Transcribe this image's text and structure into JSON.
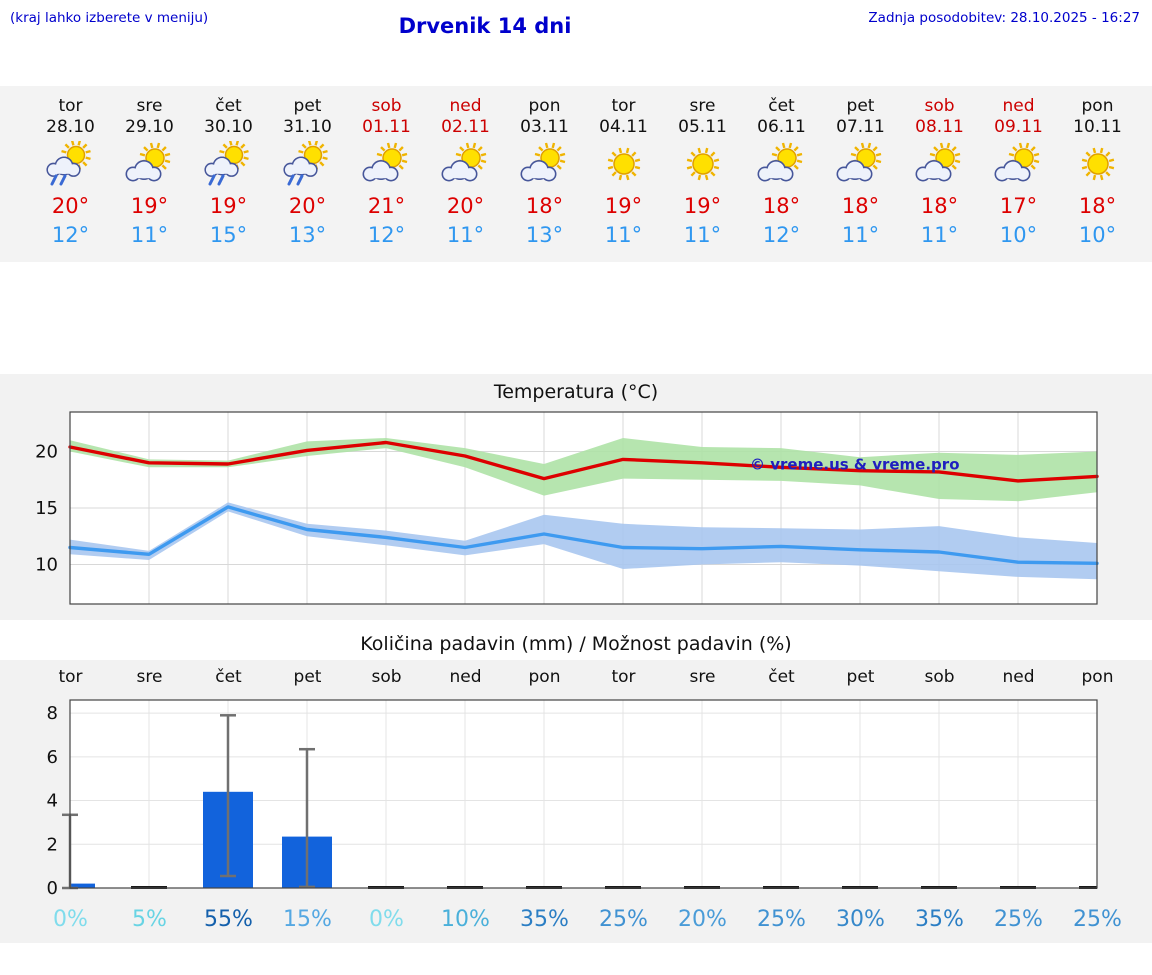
{
  "header": {
    "left_note": "(kraj lahko izberete v meniju)",
    "title": "Drvenik 14 dni",
    "updated": "Zadnja posodobitev: 28.10.2025 - 16:27"
  },
  "colors": {
    "header_blue": "#0000cc",
    "weekend_red": "#cc0000",
    "high_red": "#dd0000",
    "low_blue": "#2f97f0",
    "strip_bg": "#f3f3f3",
    "section_bg": "#f2f2f2",
    "grid_gray": "#d8d8d8",
    "plot_border": "#444444",
    "whisker_gray": "#707070"
  },
  "days": [
    {
      "name": "tor",
      "date": "28.10",
      "weekend": false,
      "icon": "sun-cloud-rain",
      "high": "20°",
      "low": "12°"
    },
    {
      "name": "sre",
      "date": "29.10",
      "weekend": false,
      "icon": "sun-cloud",
      "high": "19°",
      "low": "11°"
    },
    {
      "name": "čet",
      "date": "30.10",
      "weekend": false,
      "icon": "sun-cloud-rain",
      "high": "19°",
      "low": "15°"
    },
    {
      "name": "pet",
      "date": "31.10",
      "weekend": false,
      "icon": "sun-cloud-rain",
      "high": "20°",
      "low": "13°"
    },
    {
      "name": "sob",
      "date": "01.11",
      "weekend": true,
      "icon": "sun-cloud",
      "high": "21°",
      "low": "12°"
    },
    {
      "name": "ned",
      "date": "02.11",
      "weekend": true,
      "icon": "sun-cloud",
      "high": "20°",
      "low": "11°"
    },
    {
      "name": "pon",
      "date": "03.11",
      "weekend": false,
      "icon": "sun-cloud",
      "high": "18°",
      "low": "13°"
    },
    {
      "name": "tor",
      "date": "04.11",
      "weekend": false,
      "icon": "sun",
      "high": "19°",
      "low": "11°"
    },
    {
      "name": "sre",
      "date": "05.11",
      "weekend": false,
      "icon": "sun",
      "high": "19°",
      "low": "11°"
    },
    {
      "name": "čet",
      "date": "06.11",
      "weekend": false,
      "icon": "sun-cloud",
      "high": "18°",
      "low": "12°"
    },
    {
      "name": "pet",
      "date": "07.11",
      "weekend": false,
      "icon": "sun-cloud",
      "high": "18°",
      "low": "11°"
    },
    {
      "name": "sob",
      "date": "08.11",
      "weekend": true,
      "icon": "sun-cloud",
      "high": "18°",
      "low": "11°"
    },
    {
      "name": "ned",
      "date": "09.11",
      "weekend": true,
      "icon": "sun-cloud",
      "high": "17°",
      "low": "10°"
    },
    {
      "name": "pon",
      "date": "10.11",
      "weekend": false,
      "icon": "sun",
      "high": "18°",
      "low": "10°"
    }
  ],
  "chart_data": [
    {
      "type": "line",
      "title": "Temperatura (°C)",
      "categories": [
        "tor",
        "sre",
        "čet",
        "pet",
        "sob",
        "ned",
        "pon",
        "tor",
        "sre",
        "čet",
        "pet",
        "sob",
        "ned",
        "pon"
      ],
      "ylim": [
        6.5,
        23.5
      ],
      "yticks": [
        10,
        15,
        20
      ],
      "grid": true,
      "watermark": "© vreme.us & vreme.pro",
      "series": [
        {
          "name": "max-temp",
          "color": "#dd0000",
          "values": [
            20.4,
            19.0,
            18.9,
            20.1,
            20.8,
            19.6,
            17.6,
            19.3,
            19.0,
            18.6,
            18.3,
            18.2,
            17.4,
            17.8
          ]
        },
        {
          "name": "min-temp",
          "color": "#3e9af0",
          "values": [
            11.5,
            10.9,
            15.1,
            13.1,
            12.4,
            11.5,
            12.7,
            11.5,
            11.4,
            11.6,
            11.3,
            11.1,
            10.2,
            10.1
          ]
        }
      ],
      "bands": [
        {
          "name": "max-range",
          "color": "#aee2a6",
          "hi": [
            21.0,
            19.3,
            19.2,
            20.9,
            21.2,
            20.3,
            18.9,
            21.2,
            20.4,
            20.3,
            19.5,
            19.9,
            19.7,
            20.0
          ],
          "lo": [
            20.0,
            18.6,
            18.6,
            19.6,
            20.3,
            18.6,
            16.1,
            17.6,
            17.5,
            17.4,
            17.0,
            15.8,
            15.6,
            16.4
          ]
        },
        {
          "name": "min-range",
          "color": "#a9c7ef",
          "hi": [
            12.2,
            11.2,
            15.5,
            13.6,
            13.0,
            12.1,
            14.4,
            13.6,
            13.3,
            13.2,
            13.1,
            13.4,
            12.4,
            11.9
          ],
          "lo": [
            10.9,
            10.4,
            14.7,
            12.5,
            11.7,
            10.8,
            11.8,
            9.6,
            10.0,
            10.2,
            9.9,
            9.4,
            8.9,
            8.7
          ]
        }
      ]
    },
    {
      "type": "bar",
      "title": "Količina padavin (mm) / Možnost padavin (%)",
      "categories": [
        "tor",
        "sre",
        "čet",
        "pet",
        "sob",
        "ned",
        "pon",
        "tor",
        "sre",
        "čet",
        "pet",
        "sob",
        "ned",
        "pon"
      ],
      "values": [
        0.2,
        0,
        4.4,
        2.35,
        0,
        0,
        0,
        0,
        0,
        0,
        0,
        0,
        0,
        0
      ],
      "whiskers": [
        [
          0,
          3.35
        ],
        null,
        [
          0.55,
          7.9
        ],
        [
          0.05,
          6.35
        ],
        null,
        null,
        null,
        null,
        null,
        null,
        null,
        null,
        null,
        null
      ],
      "ylim": [
        0,
        8.6
      ],
      "yticks": [
        0,
        2,
        4,
        6,
        8
      ],
      "bar_color": "#1263dc",
      "percent_chance": [
        {
          "label": "0%",
          "color": "#80dcec"
        },
        {
          "label": "5%",
          "color": "#68d4e4"
        },
        {
          "label": "55%",
          "color": "#1460ac"
        },
        {
          "label": "15%",
          "color": "#55a8e2"
        },
        {
          "label": "0%",
          "color": "#80dcec"
        },
        {
          "label": "10%",
          "color": "#4ab0da"
        },
        {
          "label": "35%",
          "color": "#2b7ec4"
        },
        {
          "label": "25%",
          "color": "#4092d2"
        },
        {
          "label": "20%",
          "color": "#4a9cd8"
        },
        {
          "label": "25%",
          "color": "#4092d2"
        },
        {
          "label": "30%",
          "color": "#3688ca"
        },
        {
          "label": "35%",
          "color": "#2b7ec4"
        },
        {
          "label": "25%",
          "color": "#4092d2"
        },
        {
          "label": "25%",
          "color": "#4092d2"
        }
      ]
    }
  ]
}
